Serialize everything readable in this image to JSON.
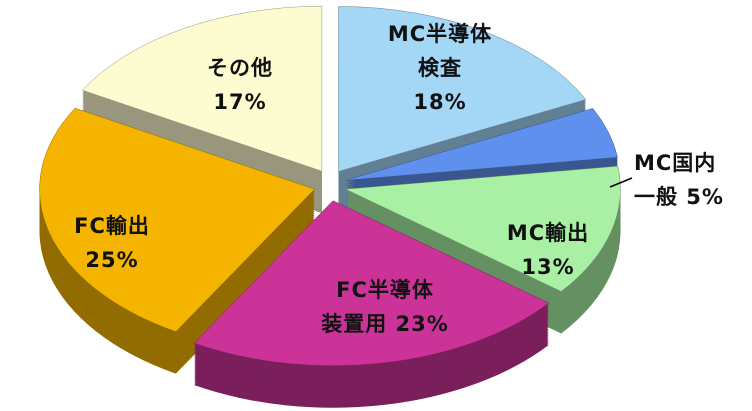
{
  "chart_data": {
    "type": "pie",
    "categories": [
      "MC半導体\n検査",
      "MC国内\n一般",
      "MC輸出",
      "FC半導体\n装置用",
      "FC輸出",
      "その他"
    ],
    "values": [
      18,
      5,
      13,
      23,
      25,
      17
    ],
    "value_labels": [
      "18%",
      "5%",
      "13%",
      "23%",
      "25%",
      "17%"
    ],
    "colors": [
      "#a4d6f5",
      "#5f90ee",
      "#a9f0a4",
      "#cc3399",
      "#f4b400",
      "#fdfbd0"
    ]
  }
}
